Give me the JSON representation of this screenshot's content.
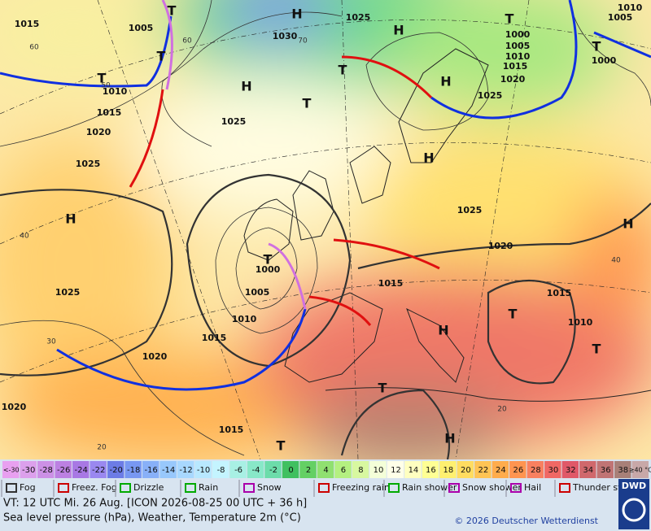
{
  "map": {
    "pressure_labels": [
      "1015",
      "1005",
      "1025",
      "1030",
      "1000",
      "1005",
      "1010",
      "1015",
      "1020",
      "1025",
      "1010",
      "1015",
      "1020",
      "1025",
      "1025",
      "1010",
      "1005",
      "1000",
      "1025",
      "1020",
      "1000",
      "1005",
      "1010",
      "1015",
      "1015",
      "1010",
      "1025",
      "1015",
      "1020",
      "1020",
      "1015"
    ],
    "temperature_labels": [
      "60",
      "60",
      "50",
      "70",
      "40",
      "30",
      "20",
      "40",
      "20"
    ],
    "centers": [
      "H",
      "H",
      "H",
      "H",
      "H",
      "H",
      "H",
      "H",
      "H",
      "T",
      "T",
      "T",
      "T",
      "T",
      "T",
      "T",
      "T",
      "T",
      "T",
      "T",
      "T"
    ]
  },
  "scale": {
    "labels": [
      "<-30",
      "-30",
      "-28",
      "-26",
      "-24",
      "-22",
      "-20",
      "-18",
      "-16",
      "-14",
      "-12",
      "-10",
      "-8",
      "-6",
      "-4",
      "-2",
      "0",
      "2",
      "4",
      "6",
      "8",
      "10",
      "12",
      "14",
      "16",
      "18",
      "20",
      "22",
      "24",
      "26",
      "28",
      "30",
      "32",
      "34",
      "36",
      "38",
      "≥40 °C"
    ],
    "colors": [
      "#e8a0f0",
      "#dca0ec",
      "#cc90e6",
      "#bc80e2",
      "#a878e4",
      "#9a88f0",
      "#6c7ce6",
      "#7898f2",
      "#88b0f8",
      "#98c8fc",
      "#a8d8ff",
      "#b8e8ff",
      "#c4f4ff",
      "#a8f0e4",
      "#88e8c8",
      "#6cdcaa",
      "#40c060",
      "#64d064",
      "#90e070",
      "#b4f080",
      "#d8f8a0",
      "#f4ffd8",
      "#ffffe8",
      "#ffffc0",
      "#ffff94",
      "#fff070",
      "#ffdc60",
      "#ffc454",
      "#ffac4c",
      "#ff9450",
      "#f88060",
      "#f06864",
      "#e05868",
      "#d0686c",
      "#c07474",
      "#a88078",
      "#c8a8a8"
    ]
  },
  "legend": [
    "Fog",
    "Freez. Fog",
    "Drizzle",
    "Rain",
    "Snow",
    "Freezing rain",
    "Rain shower",
    "Snow shower",
    "Hail",
    "Thunder storm"
  ],
  "footer": {
    "valid_time": "VT: 12 UTC Mi.  26 Aug. [ICON 2026-08-25  00 UTC + 36 h]",
    "description": "Sea level pressure (hPa), Weather, Temperature 2m (°C)",
    "copyright": "© 2026 Deutscher Wetterdienst",
    "logo": "DWD"
  }
}
